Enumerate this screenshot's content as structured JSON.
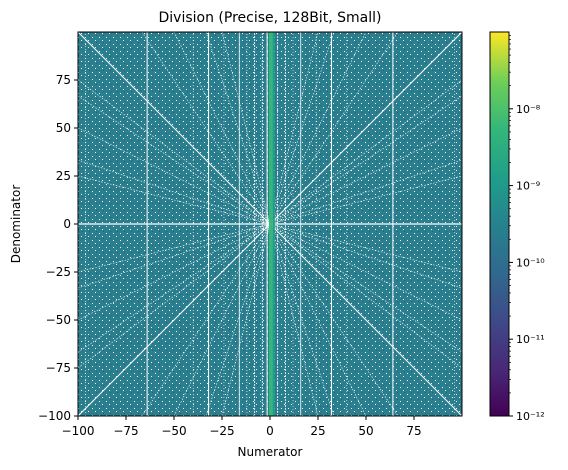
{
  "chart_data": {
    "type": "heatmap",
    "title": "Division (Precise, 128Bit, Small)",
    "xlabel": "Numerator",
    "ylabel": "Denominator",
    "xlim": [
      -100,
      100
    ],
    "ylim": [
      -100,
      100
    ],
    "xticks": [
      -100,
      -75,
      -50,
      -25,
      0,
      25,
      50,
      75
    ],
    "yticks": [
      -100,
      -75,
      -50,
      -25,
      0,
      25,
      50,
      75
    ],
    "xtick_labels": [
      "−100",
      "−75",
      "−50",
      "−25",
      "0",
      "25",
      "50",
      "75"
    ],
    "ytick_labels": [
      "−100",
      "−75",
      "−50",
      "−25",
      "0",
      "25",
      "50",
      "75"
    ],
    "colormap": "viridis",
    "colorbar": {
      "scale": "log",
      "range": [
        1e-12,
        1e-07
      ],
      "ticks": [
        1e-12,
        1e-11,
        1e-10,
        1e-09,
        1e-08
      ],
      "tick_labels": [
        "10⁻¹²",
        "10⁻¹¹",
        "10⁻¹⁰",
        "10⁻⁹",
        "10⁻⁸"
      ]
    },
    "typical_value": 3e-10,
    "high_value_columns": [
      {
        "numerator": 0,
        "value": 1e-08
      },
      {
        "numerator": 1,
        "value": 3e-09
      },
      {
        "numerator": 2,
        "value": 1e-09
      }
    ],
    "grid": false,
    "colors": {
      "background_field": "#2a7f8e",
      "blank_cells": "#ffffff"
    }
  }
}
